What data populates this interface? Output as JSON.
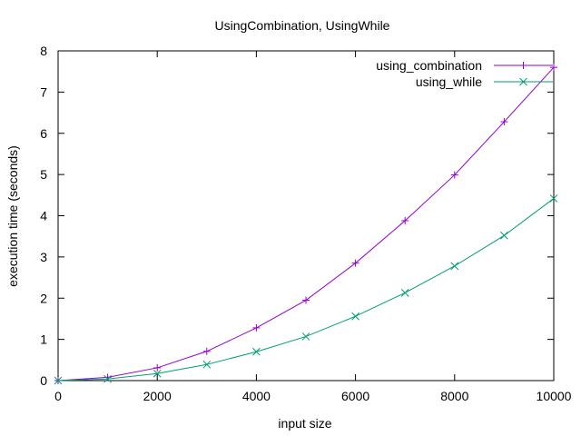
{
  "chart_data": {
    "type": "line",
    "title": "UsingCombination, UsingWhile",
    "xlabel": "input size",
    "ylabel": "execution time (seconds)",
    "xlim": [
      0,
      10000
    ],
    "ylim": [
      0,
      8
    ],
    "xticks": [
      0,
      2000,
      4000,
      6000,
      8000,
      10000
    ],
    "yticks": [
      0,
      1,
      2,
      3,
      4,
      5,
      6,
      7,
      8
    ],
    "grid": false,
    "legend_position": "top-right",
    "x": [
      0,
      1000,
      2000,
      3000,
      4000,
      5000,
      6000,
      7000,
      8000,
      9000,
      10000
    ],
    "series": [
      {
        "name": "using_combination",
        "color": "#9400d3",
        "marker": "plus",
        "values": [
          0.0,
          0.08,
          0.31,
          0.71,
          1.28,
          1.95,
          2.85,
          3.88,
          4.99,
          6.28,
          7.6
        ]
      },
      {
        "name": "using_while",
        "color": "#009e73",
        "marker": "cross",
        "values": [
          0.0,
          0.04,
          0.17,
          0.39,
          0.7,
          1.07,
          1.56,
          2.13,
          2.78,
          3.52,
          4.42
        ]
      }
    ]
  }
}
